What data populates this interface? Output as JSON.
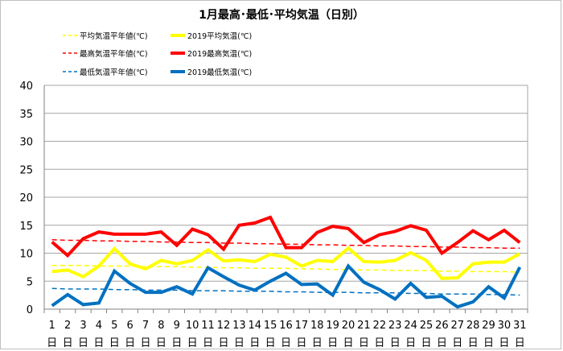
{
  "chart_data": {
    "type": "line",
    "title": "1月最高･最低･平均気温（日別）",
    "xlabel": "",
    "ylabel": "",
    "ylim": [
      0,
      40
    ],
    "yticks": [
      0,
      5,
      10,
      15,
      20,
      25,
      30,
      35,
      40
    ],
    "grid": true,
    "legend_position": "top",
    "categories": [
      "1",
      "2",
      "3",
      "4",
      "5",
      "6",
      "7",
      "8",
      "9",
      "10",
      "11",
      "12",
      "13",
      "14",
      "15",
      "16",
      "17",
      "18",
      "19",
      "20",
      "21",
      "22",
      "23",
      "24",
      "25",
      "26",
      "27",
      "28",
      "29",
      "30",
      "31"
    ],
    "category_suffix": "日",
    "series": [
      {
        "name": "平均気温平年値(℃)",
        "color": "#ffff00",
        "style": "dashed",
        "values": [
          7.8,
          7.8,
          7.8,
          7.7,
          7.7,
          7.7,
          7.6,
          7.6,
          7.6,
          7.5,
          7.5,
          7.4,
          7.4,
          7.3,
          7.3,
          7.3,
          7.2,
          7.2,
          7.1,
          7.1,
          7.0,
          7.0,
          6.9,
          6.9,
          6.9,
          6.8,
          6.8,
          6.7,
          6.7,
          6.7,
          6.6
        ]
      },
      {
        "name": "2019平均気温(℃)",
        "color": "#ffff00",
        "style": "solid",
        "values": [
          6.7,
          7.0,
          5.8,
          7.7,
          10.8,
          8.1,
          7.2,
          8.7,
          8.1,
          8.7,
          10.6,
          8.6,
          8.8,
          8.5,
          9.8,
          9.3,
          7.7,
          8.7,
          8.5,
          10.9,
          8.5,
          8.4,
          8.7,
          10.1,
          8.7,
          5.5,
          5.6,
          8.1,
          8.4,
          8.4,
          9.9
        ]
      },
      {
        "name": "最高気温平年値(℃)",
        "color": "#ff0000",
        "style": "dashed",
        "values": [
          12.4,
          12.3,
          12.3,
          12.2,
          12.2,
          12.1,
          12.1,
          12.0,
          12.0,
          11.9,
          11.9,
          11.8,
          11.8,
          11.7,
          11.7,
          11.6,
          11.6,
          11.5,
          11.5,
          11.4,
          11.4,
          11.3,
          11.3,
          11.2,
          11.2,
          11.1,
          11.1,
          11.0,
          11.0,
          10.9,
          10.9
        ]
      },
      {
        "name": "2019最高気温(℃)",
        "color": "#ff0000",
        "style": "solid",
        "values": [
          12.0,
          9.6,
          12.6,
          13.8,
          13.4,
          13.4,
          13.4,
          13.8,
          11.4,
          14.3,
          13.3,
          10.7,
          15.0,
          15.4,
          16.4,
          11.0,
          11.0,
          13.7,
          14.8,
          14.4,
          11.9,
          13.3,
          13.9,
          14.9,
          14.1,
          10.0,
          11.9,
          14.0,
          12.4,
          14.1,
          11.9
        ]
      },
      {
        "name": "最低気温平年値(℃)",
        "color": "#0070c0",
        "style": "dashed",
        "values": [
          3.7,
          3.6,
          3.6,
          3.6,
          3.5,
          3.5,
          3.4,
          3.4,
          3.4,
          3.3,
          3.3,
          3.3,
          3.2,
          3.2,
          3.2,
          3.1,
          3.1,
          3.0,
          3.0,
          3.0,
          2.9,
          2.9,
          2.9,
          2.8,
          2.8,
          2.7,
          2.7,
          2.7,
          2.6,
          2.6,
          2.5
        ]
      },
      {
        "name": "2019最低気温(℃)",
        "color": "#0070c0",
        "style": "solid",
        "values": [
          0.6,
          2.6,
          0.8,
          1.1,
          6.8,
          4.6,
          3.0,
          3.0,
          4.0,
          2.7,
          7.4,
          5.8,
          4.3,
          3.4,
          5.0,
          6.4,
          4.4,
          4.5,
          2.5,
          7.7,
          4.8,
          3.5,
          1.8,
          4.6,
          2.1,
          2.3,
          0.4,
          1.3,
          4.0,
          2.0,
          7.5
        ]
      }
    ]
  }
}
